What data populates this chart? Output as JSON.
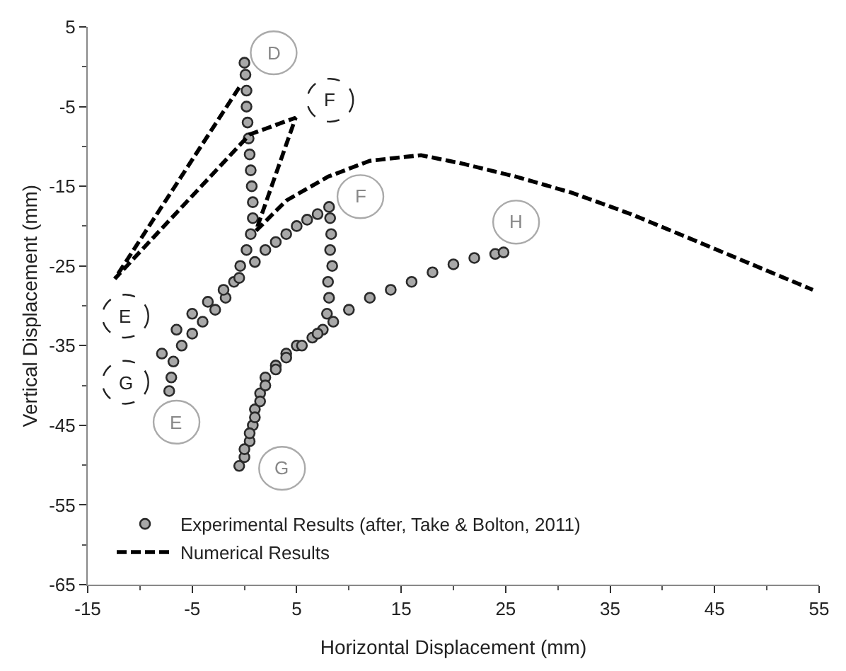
{
  "chart_data": {
    "type": "scatter",
    "xlabel": "Horizontal Displacement (mm)",
    "ylabel": "Vertical Displacement (mm)",
    "xlim": [
      -15,
      55
    ],
    "xticks": [
      -15,
      -5,
      5,
      15,
      25,
      35,
      45,
      55
    ],
    "ylim": [
      -65,
      5
    ],
    "yticks": [
      -65,
      -55,
      -45,
      -35,
      -25,
      -15,
      -5,
      5
    ],
    "legend": "bottom left",
    "marker": "circle",
    "series": [
      {
        "name": "Experimental Results (after, Take & Bolton, 2011)",
        "color": "#a8a8a8",
        "x": [
          0,
          0.1,
          0.2,
          0.2,
          0.3,
          0.4,
          0.5,
          0.6,
          0.7,
          0.8,
          0.8,
          0.6,
          0.2,
          -0.4,
          -1,
          -1.8,
          -2.8,
          -4,
          -5,
          -6,
          -6.8,
          -7,
          -7.2,
          -7.9,
          -6.5,
          -5,
          -3.5,
          -2,
          -0.5,
          1,
          2,
          3,
          4,
          5,
          6,
          7,
          8.1,
          8.2,
          8.3,
          8.2,
          8.4,
          8,
          8.1,
          7.9,
          7.5,
          6.5,
          5,
          4,
          3,
          2,
          1.5,
          1,
          0.8,
          0.5,
          0,
          -0.5,
          0,
          0.5,
          1,
          1.5,
          2,
          3,
          4,
          5.5,
          7,
          8.5,
          10,
          12,
          14,
          16,
          18,
          20,
          22,
          24,
          24.8
        ],
        "values": [
          0.5,
          -1,
          -3,
          -5,
          -7,
          -9,
          -11,
          -13,
          -15,
          -17,
          -19,
          -21,
          -23,
          -25,
          -27,
          -29,
          -30.5,
          -32,
          -33.5,
          -35,
          -37,
          -39,
          -40.7,
          -36,
          -33,
          -31,
          -29.5,
          -28,
          -26.5,
          -24.5,
          -23,
          -22,
          -21,
          -20,
          -19.2,
          -18.5,
          -17.6,
          -19,
          -21,
          -23,
          -25,
          -27,
          -29,
          -31,
          -33,
          -34,
          -35,
          -36,
          -37.5,
          -39,
          -41,
          -43,
          -45,
          -47,
          -49,
          -50.1,
          -48,
          -46,
          -44,
          -42,
          -40,
          -38,
          -36.5,
          -35,
          -33.5,
          -32,
          -30.5,
          -29,
          -28,
          -27,
          -25.8,
          -24.8,
          -24,
          -23.5,
          -23.3
        ]
      },
      {
        "name": "Numerical Results",
        "type": "line",
        "color": "#000000",
        "marker": "none",
        "line_style": "dashed",
        "x": [
          -0.5,
          -12.4,
          0.5,
          4.9,
          1.1,
          4,
          8,
          12,
          16.9,
          21,
          26,
          31.3,
          37,
          42.9,
          48,
          54.4
        ],
        "values": [
          -2.6,
          -26.6,
          -8.5,
          -6.4,
          -20.6,
          -16.8,
          -13.8,
          -11.8,
          -11.1,
          -12.2,
          -13.8,
          -15.8,
          -18.5,
          -21.7,
          -24.5,
          -28
        ]
      }
    ],
    "annotations": [
      {
        "text": "D",
        "x": 2.8,
        "y": 1.75
      },
      {
        "text": "F",
        "x": 11.1,
        "y": -16.3
      },
      {
        "text": "H",
        "x": 26,
        "y": -19.5
      },
      {
        "text": "E",
        "x": -6.5,
        "y": -44.6
      },
      {
        "text": "G",
        "x": 3.6,
        "y": -50.4
      },
      {
        "text": "F",
        "x": 8.2,
        "y": -4.2
      },
      {
        "text": "E",
        "x": -11.4,
        "y": -31.3
      },
      {
        "text": "G",
        "x": -11.4,
        "y": -39.6
      }
    ]
  }
}
